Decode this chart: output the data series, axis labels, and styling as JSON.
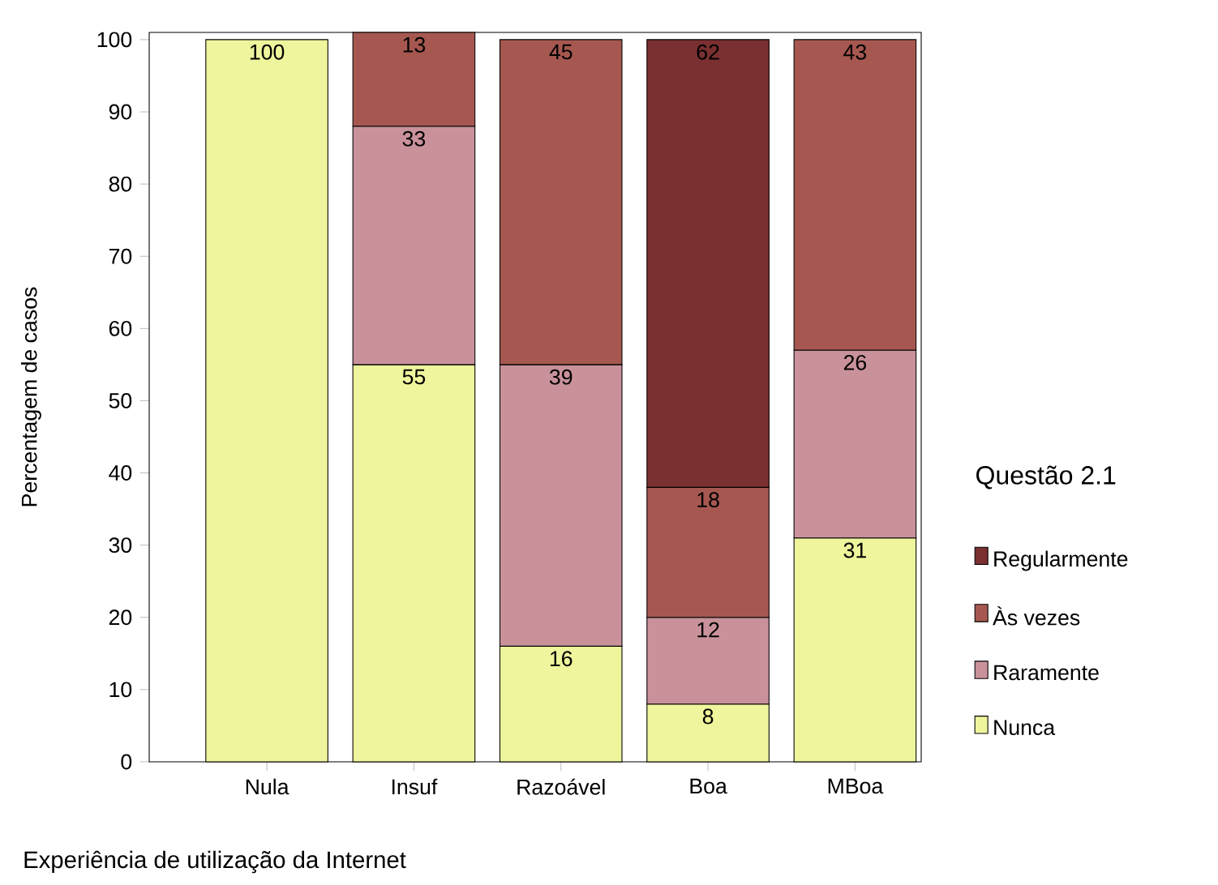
{
  "chart_data": {
    "type": "bar",
    "stacked": true,
    "data_labels": true,
    "legend": "right",
    "legend_title": "Questão 2.1",
    "xlabel": "Experiência de utilização da Internet",
    "ylabel": "Percentagem de casos",
    "categories": [
      "Nula",
      "Insuf",
      "Razoável",
      "Boa",
      "MBoa"
    ],
    "ylim": [
      0,
      101
    ],
    "yticks": [
      0,
      10,
      20,
      30,
      40,
      50,
      60,
      70,
      80,
      90,
      100
    ],
    "series": [
      {
        "name": "Nunca",
        "color": "#eef59c",
        "values": [
          100,
          55,
          16,
          8,
          31
        ]
      },
      {
        "name": "Raramente",
        "color": "#c9929b",
        "values": [
          null,
          33,
          39,
          12,
          26
        ]
      },
      {
        "name": "Às vezes",
        "color": "#a65850",
        "values": [
          null,
          13,
          45,
          18,
          43
        ]
      },
      {
        "name": "Regularmente",
        "color": "#7a2f31",
        "values": [
          null,
          null,
          null,
          62,
          null
        ]
      }
    ]
  }
}
